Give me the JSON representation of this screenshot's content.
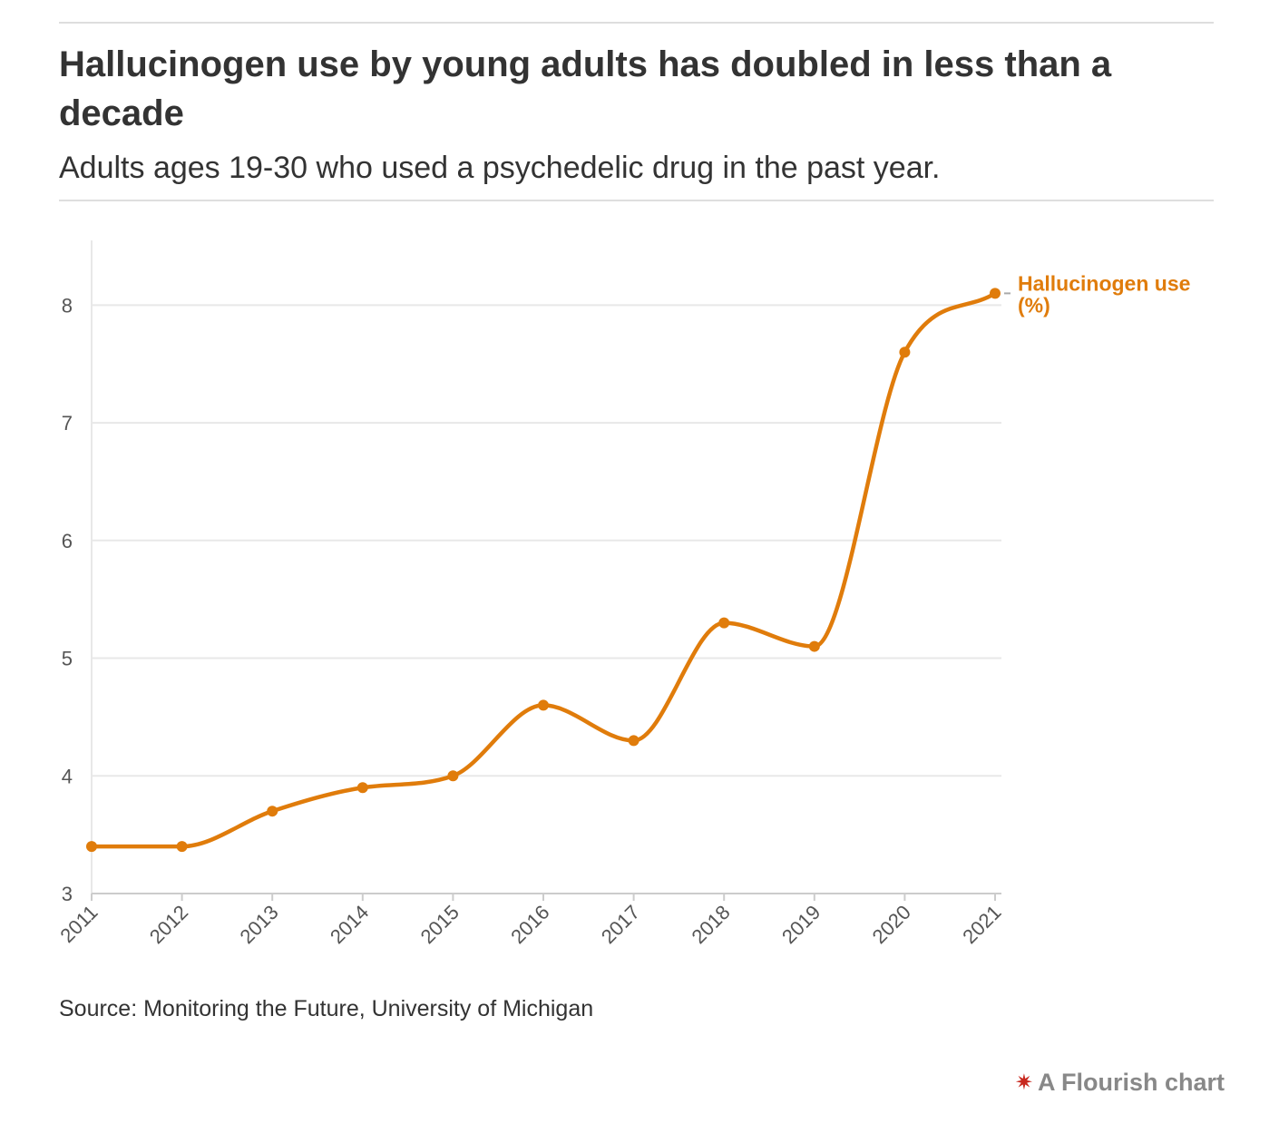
{
  "header": {
    "title": "Hallucinogen use by young adults has doubled in less than a decade",
    "subtitle": "Adults ages 19-30 who used a psychedelic drug in the past year."
  },
  "footer": {
    "source": "Source: Monitoring the Future, University of Michigan",
    "credit": "A Flourish chart",
    "credit_icon": "flourish-star-icon"
  },
  "colors": {
    "series": "#e07c0b",
    "grid": "#e8e8e8",
    "axis": "#cccccc"
  },
  "chart_data": {
    "type": "line",
    "x": [
      "2011",
      "2012",
      "2013",
      "2014",
      "2015",
      "2016",
      "2017",
      "2018",
      "2019",
      "2020",
      "2021"
    ],
    "series": [
      {
        "name": "Hallucinogen use (%)",
        "label_lines": [
          "Hallucinogen use",
          "(%)"
        ],
        "values": [
          3.4,
          3.4,
          3.7,
          3.9,
          4.0,
          4.6,
          4.3,
          5.3,
          5.1,
          7.6,
          8.1
        ]
      }
    ],
    "yticks": [
      3,
      4,
      5,
      6,
      7,
      8
    ],
    "ylim": [
      3,
      8.55
    ],
    "xlabel": "",
    "ylabel": "",
    "grid": true,
    "legend": "end-of-line label",
    "line_style": "smooth curve with markers"
  }
}
